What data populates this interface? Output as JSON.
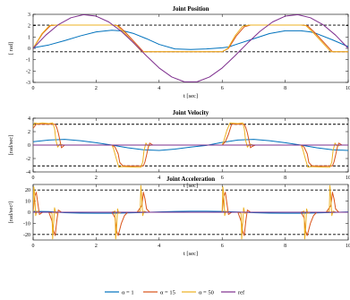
{
  "chart_data": [
    {
      "type": "line",
      "title": "Joint Position",
      "xlabel": "t [sec]",
      "ylabel": "[ rad]",
      "xlim": [
        0,
        10
      ],
      "ylim": [
        -3,
        3
      ],
      "xticks": [
        0,
        2,
        4,
        6,
        8,
        10
      ],
      "yticks": [
        -3,
        -2,
        -1,
        0,
        1,
        2,
        3
      ],
      "limits": [
        2.05,
        -0.3
      ],
      "series": [
        {
          "name": "α = 1",
          "color": "#0072BD",
          "x": [
            0,
            0.5,
            1,
            1.5,
            2,
            2.5,
            2.9,
            3.2,
            3.6,
            4,
            4.5,
            5,
            5.5,
            6,
            6.2,
            6.5,
            7,
            7.5,
            8,
            8.5,
            8.8,
            9,
            9.5,
            10
          ],
          "y": [
            0.05,
            0.3,
            0.68,
            1.1,
            1.45,
            1.6,
            1.52,
            1.3,
            0.85,
            0.35,
            -0.05,
            -0.1,
            -0.05,
            0.05,
            0.12,
            0.4,
            0.85,
            1.3,
            1.55,
            1.55,
            1.45,
            1.3,
            0.75,
            0.15
          ]
        },
        {
          "name": "α = 15",
          "color": "#D95319",
          "x": [
            0,
            0.3,
            0.55,
            0.75,
            1,
            2.5,
            2.7,
            2.9,
            3.2,
            3.5,
            4,
            5,
            5.6,
            6,
            6.2,
            6.45,
            6.7,
            6.9,
            7.1,
            8.5,
            8.7,
            8.9,
            9.2,
            9.5,
            10
          ],
          "y": [
            0,
            1.3,
            2.0,
            2.05,
            2.05,
            2.05,
            2.0,
            1.5,
            0.6,
            -0.3,
            -0.3,
            -0.3,
            -0.3,
            -0.3,
            0,
            1.1,
            1.9,
            2.05,
            2.05,
            2.05,
            2.0,
            1.5,
            0.6,
            -0.3,
            -0.3
          ]
        },
        {
          "name": "α = 50",
          "color": "#EDB120",
          "x": [
            0,
            0.28,
            0.52,
            0.7,
            1,
            2.5,
            2.65,
            2.85,
            3.15,
            3.45,
            4,
            5,
            5.6,
            6,
            6.18,
            6.42,
            6.65,
            6.85,
            7.1,
            8.5,
            8.65,
            8.85,
            9.15,
            9.45,
            10
          ],
          "y": [
            0,
            1.3,
            2.02,
            2.05,
            2.05,
            2.05,
            2.02,
            1.5,
            0.6,
            -0.3,
            -0.3,
            -0.3,
            -0.3,
            -0.3,
            0,
            1.15,
            1.95,
            2.05,
            2.05,
            2.05,
            2.02,
            1.5,
            0.6,
            -0.3,
            -0.3
          ]
        },
        {
          "name": "ref",
          "color": "#7E2F8E",
          "x": [
            0,
            0.4,
            0.8,
            1.2,
            1.6,
            2,
            2.4,
            2.8,
            3.2,
            3.6,
            4,
            4.4,
            4.8,
            5.2,
            5.6,
            6,
            6.4,
            6.8,
            7.2,
            7.6,
            8,
            8.4,
            8.8,
            9.2,
            9.6,
            10
          ],
          "y": [
            0,
            1.16,
            2.09,
            2.7,
            2.97,
            2.84,
            2.33,
            1.5,
            0.45,
            -0.67,
            -1.73,
            -2.52,
            -2.95,
            -2.95,
            -2.52,
            -1.73,
            -0.67,
            0.45,
            1.5,
            2.33,
            2.84,
            2.97,
            2.7,
            2.09,
            1.16,
            0
          ]
        }
      ]
    },
    {
      "type": "line",
      "title": "Joint Velocity",
      "xlabel": "t [sec]",
      "ylabel": "[rad/sec]",
      "xlim": [
        0,
        10
      ],
      "ylim": [
        -4,
        4
      ],
      "xticks": [
        0,
        2,
        4,
        6,
        8,
        10
      ],
      "yticks": [
        -4,
        -2,
        0,
        2,
        4
      ],
      "limits": [
        3.1,
        -3.1
      ],
      "series": [
        {
          "name": "α = 1",
          "color": "#0072BD",
          "x": [
            0,
            0.5,
            1,
            1.5,
            2,
            2.5,
            3,
            3.5,
            4,
            4.5,
            5,
            5.5,
            6,
            6.5,
            7,
            7.5,
            8,
            8.5,
            9,
            9.5,
            10
          ],
          "y": [
            0.5,
            0.75,
            0.85,
            0.65,
            0.35,
            0,
            -0.4,
            -0.7,
            -0.8,
            -0.6,
            -0.3,
            -0.05,
            0.4,
            0.75,
            0.85,
            0.65,
            0.35,
            0,
            -0.4,
            -0.7,
            -0.8
          ]
        },
        {
          "name": "α = 15",
          "color": "#D95319",
          "x": [
            0,
            0.1,
            0.2,
            0.5,
            0.6,
            0.7,
            0.75,
            0.8,
            0.85,
            0.9,
            0.95,
            1.0,
            2.5,
            2.6,
            2.7,
            2.75,
            2.85,
            3.2,
            3.3,
            3.4,
            3.5,
            3.55,
            3.6,
            3.65,
            3.7,
            3.8,
            6.0,
            6.1,
            6.2,
            6.3,
            6.5,
            6.7,
            6.75,
            6.8,
            6.85,
            6.9,
            6.95,
            7.05,
            8.5,
            8.6,
            8.7,
            8.75,
            8.85,
            9.2,
            9.3,
            9.4,
            9.5,
            9.55,
            9.6,
            9.65,
            9.7,
            9.8,
            10
          ],
          "y": [
            2.5,
            3.1,
            3.1,
            3.1,
            3.1,
            3.1,
            2.6,
            1.8,
            0.7,
            -0.4,
            -0.2,
            0,
            0,
            -0.3,
            -1.3,
            -2.6,
            -3.1,
            -3.1,
            -3.1,
            -3.1,
            -3.1,
            -2.5,
            -1.5,
            -0.4,
            0.3,
            0,
            0,
            0.5,
            1.6,
            3.1,
            3.1,
            3.1,
            2.6,
            1.8,
            0.7,
            -0.4,
            -0.2,
            0,
            0,
            -0.3,
            -1.3,
            -2.6,
            -3.1,
            -3.1,
            -3.1,
            -3.1,
            -3.1,
            -2.5,
            -1.5,
            -0.4,
            0.3,
            0,
            0
          ]
        },
        {
          "name": "α = 50",
          "color": "#EDB120",
          "x": [
            0,
            0.05,
            0.15,
            0.3,
            0.5,
            0.62,
            0.68,
            0.72,
            0.78,
            0.85,
            0.95,
            2.5,
            2.55,
            2.65,
            2.72,
            2.8,
            3.3,
            3.42,
            3.48,
            3.52,
            3.58,
            3.65,
            3.75,
            6.0,
            6.05,
            6.15,
            6.25,
            6.5,
            6.65,
            6.7,
            6.74,
            6.8,
            6.88,
            6.98,
            8.5,
            8.55,
            8.65,
            8.72,
            8.8,
            9.3,
            9.42,
            9.48,
            9.52,
            9.58,
            9.65,
            9.75,
            10
          ],
          "y": [
            2.8,
            3.3,
            3.2,
            3.3,
            3.2,
            3.3,
            2.5,
            0.8,
            -0.3,
            0.15,
            0,
            0,
            -0.5,
            -2.2,
            -3.3,
            -3.2,
            -3.3,
            -3.3,
            -2.5,
            -0.8,
            0.3,
            -0.15,
            0,
            0,
            0.6,
            2.2,
            3.3,
            3.2,
            3.3,
            2.5,
            0.8,
            -0.3,
            0.15,
            0,
            0,
            -0.5,
            -2.2,
            -3.3,
            -3.2,
            -3.3,
            -3.3,
            -2.5,
            -0.8,
            0.3,
            -0.15,
            0,
            0
          ]
        },
        {
          "name": "ref",
          "color": "#7E2F8E",
          "x": [
            0,
            10
          ],
          "y": [
            0,
            0
          ]
        }
      ]
    },
    {
      "type": "line",
      "title": "Joint Acceleration",
      "xlabel": "t [sec]",
      "ylabel": "[rad/sec²]",
      "xlim": [
        0,
        10
      ],
      "ylim": [
        -25,
        25
      ],
      "xticks": [
        0,
        2,
        4,
        6,
        8,
        10
      ],
      "yticks": [
        -20,
        -10,
        0,
        10,
        20
      ],
      "limits": [
        20,
        -20
      ],
      "series": [
        {
          "name": "α = 1",
          "color": "#0072BD",
          "x": [
            0,
            0.5,
            1,
            1.5,
            2,
            2.5,
            3,
            3.5,
            4,
            4.5,
            5,
            5.5,
            6,
            6.5,
            7,
            7.5,
            8,
            8.5,
            9,
            9.5,
            10
          ],
          "y": [
            0.8,
            0.6,
            -0.4,
            -0.8,
            -0.9,
            -0.9,
            -0.6,
            -0.2,
            0.3,
            0.7,
            0.9,
            0.9,
            0.7,
            0.2,
            -0.4,
            -0.8,
            -0.9,
            -0.9,
            -0.6,
            -0.2,
            0.3
          ]
        },
        {
          "name": "α = 15",
          "color": "#D95319",
          "x": [
            0,
            0.05,
            0.1,
            0.15,
            0.2,
            0.3,
            0.5,
            0.6,
            0.65,
            0.7,
            0.75,
            0.8,
            0.9,
            1.1,
            1.3,
            2.5,
            2.6,
            2.65,
            2.7,
            2.8,
            2.9,
            3.0,
            3.3,
            3.45,
            3.5,
            3.55,
            3.6,
            3.7,
            3.9,
            6.0,
            6.05,
            6.1,
            6.15,
            6.2,
            6.3,
            6.5,
            6.6,
            6.65,
            6.7,
            6.75,
            6.8,
            6.9,
            7.1,
            7.3,
            8.5,
            8.6,
            8.65,
            8.7,
            8.8,
            8.9,
            9.0,
            9.3,
            9.45,
            9.5,
            9.55,
            9.6,
            9.7,
            9.9,
            10
          ],
          "y": [
            0,
            14,
            18,
            8,
            -2,
            0,
            0,
            -8,
            -17,
            -21,
            -8,
            2,
            0,
            0,
            0,
            0,
            -5,
            -17,
            -21,
            -10,
            -3,
            0,
            0,
            6,
            18,
            12,
            3,
            0,
            0,
            0,
            14,
            18,
            8,
            -2,
            0,
            0,
            -8,
            -17,
            -21,
            -8,
            2,
            0,
            0,
            0,
            0,
            -5,
            -17,
            -21,
            -10,
            -3,
            0,
            0,
            6,
            18,
            12,
            3,
            0,
            0,
            0
          ]
        },
        {
          "name": "α = 50",
          "color": "#EDB120",
          "x": [
            0,
            0.02,
            0.05,
            0.08,
            0.12,
            0.2,
            0.3,
            0.5,
            0.6,
            0.62,
            0.65,
            0.68,
            0.72,
            0.8,
            1.0,
            2.5,
            2.6,
            2.62,
            2.65,
            2.68,
            2.72,
            2.8,
            3.3,
            3.4,
            3.42,
            3.45,
            3.48,
            3.52,
            3.6,
            3.8,
            6.0,
            6.02,
            6.05,
            6.08,
            6.12,
            6.2,
            6.3,
            6.5,
            6.6,
            6.62,
            6.65,
            6.68,
            6.72,
            6.8,
            7.0,
            8.5,
            8.6,
            8.62,
            8.65,
            8.68,
            8.72,
            8.8,
            9.3,
            9.4,
            9.42,
            9.45,
            9.48,
            9.52,
            9.6,
            9.8,
            10
          ],
          "y": [
            0,
            23,
            16,
            -3,
            1,
            0,
            0,
            0,
            -1,
            -24,
            -10,
            4,
            -1,
            0,
            0,
            0,
            1,
            -24,
            -15,
            3,
            -1,
            0,
            0,
            1,
            24,
            12,
            -3,
            1,
            0,
            0,
            0,
            23,
            16,
            -3,
            1,
            0,
            0,
            0,
            -1,
            -24,
            -10,
            4,
            -1,
            0,
            0,
            0,
            1,
            -24,
            -15,
            3,
            -1,
            0,
            0,
            1,
            24,
            12,
            -3,
            1,
            0,
            0,
            0
          ]
        },
        {
          "name": "ref",
          "color": "#7E2F8E",
          "x": [
            0,
            10
          ],
          "y": [
            0,
            0
          ]
        }
      ]
    }
  ],
  "legend": {
    "placement": "bottom",
    "entries": [
      {
        "name": "α = 1",
        "color": "#0072BD"
      },
      {
        "name": "α = 15",
        "color": "#D95319"
      },
      {
        "name": "α = 50",
        "color": "#EDB120"
      },
      {
        "name": "ref",
        "color": "#7E2F8E"
      }
    ]
  }
}
